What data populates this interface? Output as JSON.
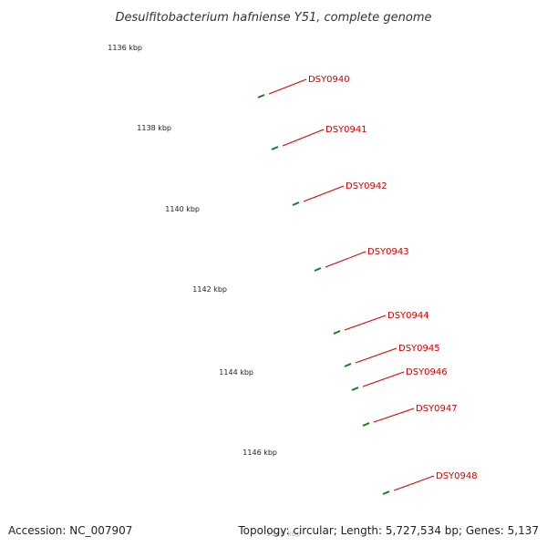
{
  "title": "Desulfitobacterium hafniense Y51, complete genome",
  "footer": {
    "accession": "Accession: NC_007907",
    "summary": "Topology: circular; Length: 5,727,534 bp; Genes: 5,137"
  },
  "colors": {
    "backbone": "#808080",
    "forward_cds": "#ff0000",
    "reverse_cds": "#00e8e8",
    "other_cds": "#7b68d8",
    "dark_cds": "#00008b",
    "orange_cds": "#ff9900",
    "ticks": "#1e7a1e",
    "label": "#cc0000",
    "leader": "#cc0000"
  },
  "tick_labels": [
    "1136 kbp",
    "1138 kbp",
    "1140 kbp",
    "1142 kbp",
    "1144 kbp",
    "1146 kbp",
    "1148 kbp"
  ],
  "gene_labels": [
    "DSY0940",
    "DSY0941",
    "DSY0942",
    "DSY0943",
    "DSY0944",
    "DSY0945",
    "DSY0946",
    "DSY0947",
    "DSY0948"
  ]
}
